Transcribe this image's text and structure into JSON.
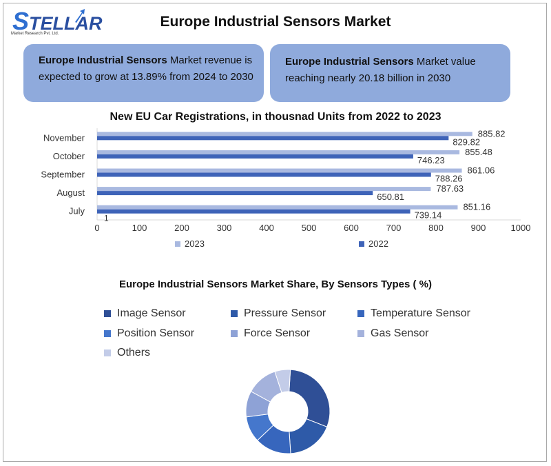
{
  "logo": {
    "name": "TELLAR",
    "initial": "S",
    "subtitle": "Market Research Pvt. Ltd."
  },
  "title": "Europe Industrial Sensors Market",
  "info_boxes": [
    {
      "bold": "Europe Industrial Sensors",
      "text": " Market revenue is expected to grow at 13.89% from 2024 to 2030"
    },
    {
      "bold": "Europe Industrial Sensors",
      "text": " Market value reaching nearly 20.18 billion in 2030"
    }
  ],
  "colors": {
    "s2023": "#a9b9e0",
    "s2022": "#3e63b8",
    "box": "#8faadc",
    "axis": "#d9d9d9"
  },
  "chart_data": [
    {
      "type": "bar",
      "orientation": "horizontal",
      "title": "New EU Car Registrations, in thousnad Units from 2022 to 2023",
      "categories": [
        "November",
        "October",
        "September",
        "August",
        "July"
      ],
      "series": [
        {
          "name": "2023",
          "values": [
            885.82,
            855.48,
            861.06,
            787.63,
            851.16
          ]
        },
        {
          "name": "2022",
          "values": [
            829.82,
            746.23,
            788.26,
            650.81,
            739.14
          ]
        }
      ],
      "extra_label": "1",
      "xlim": [
        0,
        1000
      ],
      "xticks": [
        0,
        100,
        200,
        300,
        400,
        500,
        600,
        700,
        800,
        900,
        1000
      ],
      "legend": "bottom"
    },
    {
      "type": "pie",
      "style": "donut",
      "title": "Europe  Industrial Sensors Market Share, By Sensors Types ( %)",
      "labels": [
        "Image Sensor",
        "Pressure Sensor",
        "Temperature Sensor",
        "Position Sensor",
        "Force Sensor",
        "Gas Sensor",
        "Others"
      ],
      "values": [
        30,
        18,
        14,
        10,
        10,
        12,
        6
      ],
      "colors": [
        "#2f4f96",
        "#2e5aa8",
        "#3766bd",
        "#4577cc",
        "#8ea2d6",
        "#a4b2dc",
        "#c3cce8"
      ],
      "legend": "top"
    }
  ]
}
